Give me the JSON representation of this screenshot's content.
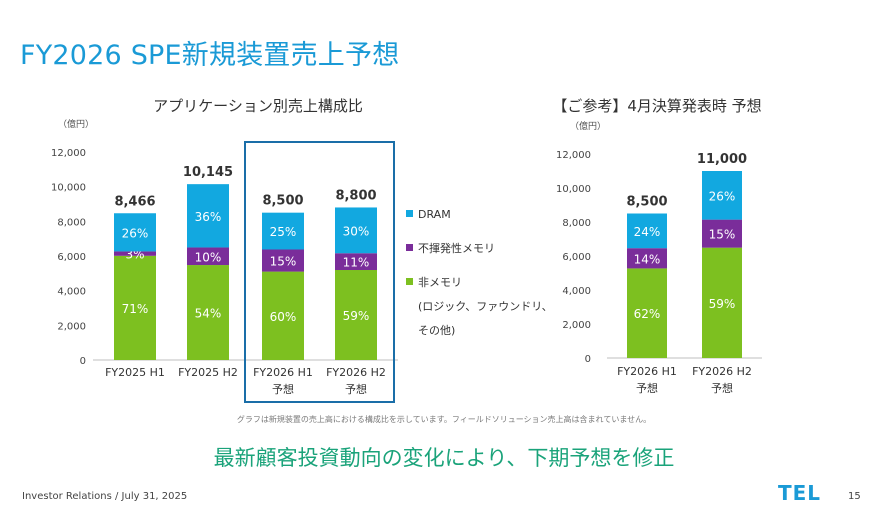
{
  "slide": {
    "title": "FY2026 SPE新規装置売上予想",
    "footnote": "グラフは新規装置の売上高における構成比を示しています。フィールドソリューション売上高は含まれていません。",
    "message": "最新顧客投資動向の変化により、下期予想を修正",
    "footer_left": "Investor Relations / July 31, 2025",
    "logo": "TEL",
    "page_number": "15"
  },
  "colors": {
    "title": "#1a9ad6",
    "dram": "#12a8e0",
    "nonvolatile": "#7a2d9a",
    "nonmemory": "#7dc020",
    "highlight_box": "#1a6ea8",
    "message": "#1aa37a"
  },
  "chart_data": [
    {
      "type": "bar",
      "stacked": true,
      "title": "アプリケーション別売上構成比",
      "unit_label": "（億円）",
      "ylim": [
        0,
        12000
      ],
      "yticks": [
        "0",
        "2,000",
        "4,000",
        "6,000",
        "8,000",
        "10,000",
        "12,000"
      ],
      "categories": [
        [
          "FY2025 H1"
        ],
        [
          "FY2025 H2"
        ],
        [
          "FY2026 H1",
          "予想"
        ],
        [
          "FY2026 H2",
          "予想"
        ]
      ],
      "totals": [
        8466,
        10145,
        8500,
        8800
      ],
      "total_labels": [
        "8,466",
        "10,145",
        "8,500",
        "8,800"
      ],
      "highlighted_categories": [
        2,
        3
      ],
      "series": [
        {
          "name": "非メモリ",
          "name_lines": [
            "非メモリ",
            "(ロジック、ファウンドリ、",
            "その他)"
          ],
          "color_key": "nonmemory",
          "percent": [
            71,
            54,
            60,
            59
          ],
          "labels": [
            "71%",
            "54%",
            "60%",
            "59%"
          ]
        },
        {
          "name": "不揮発性メモリ",
          "name_lines": [
            "不揮発性メモリ"
          ],
          "color_key": "nonvolatile",
          "percent": [
            3,
            10,
            15,
            11
          ],
          "labels": [
            "3%",
            "10%",
            "15%",
            "11%"
          ]
        },
        {
          "name": "DRAM",
          "name_lines": [
            "DRAM"
          ],
          "color_key": "dram",
          "percent": [
            26,
            36,
            25,
            30
          ],
          "labels": [
            "26%",
            "36%",
            "25%",
            "30%"
          ]
        }
      ],
      "legend": "right"
    },
    {
      "type": "bar",
      "stacked": true,
      "title": "【ご参考】4月決算発表時 予想",
      "unit_label": "（億円）",
      "ylim": [
        0,
        12000
      ],
      "yticks": [
        "0",
        "2,000",
        "4,000",
        "6,000",
        "8,000",
        "10,000",
        "12,000"
      ],
      "categories": [
        [
          "FY2026 H1",
          "予想"
        ],
        [
          "FY2026 H2",
          "予想"
        ]
      ],
      "totals": [
        8500,
        11000
      ],
      "total_labels": [
        "8,500",
        "11,000"
      ],
      "series": [
        {
          "name": "非メモリ",
          "color_key": "nonmemory",
          "percent": [
            62,
            59
          ],
          "labels": [
            "62%",
            "59%"
          ]
        },
        {
          "name": "不揮発性メモリ",
          "color_key": "nonvolatile",
          "percent": [
            14,
            15
          ],
          "labels": [
            "14%",
            "15%"
          ]
        },
        {
          "name": "DRAM",
          "color_key": "dram",
          "percent": [
            24,
            26
          ],
          "labels": [
            "24%",
            "26%"
          ]
        }
      ]
    }
  ]
}
